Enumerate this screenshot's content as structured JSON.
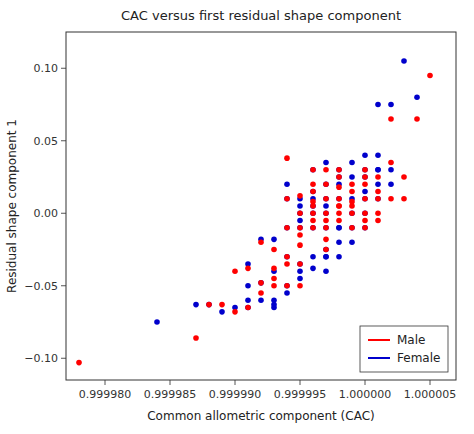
{
  "chart_data": {
    "type": "scatter",
    "title": "CAC versus first residual shape component",
    "x_label": "Common allometric component (CAC)",
    "y_label": "Residual shape component 1",
    "xlim": [
      0.999977,
      1.000007
    ],
    "ylim": [
      -0.115,
      0.125
    ],
    "xticks": [
      {
        "value": 0.99998,
        "label": "0.999980"
      },
      {
        "value": 0.999985,
        "label": "0.999985"
      },
      {
        "value": 0.99999,
        "label": "0.999990"
      },
      {
        "value": 0.999995,
        "label": "0.999995"
      },
      {
        "value": 1.0,
        "label": "1.000000"
      },
      {
        "value": 1.000005,
        "label": "1.000005"
      }
    ],
    "yticks": [
      {
        "value": -0.1,
        "label": "−0.10"
      },
      {
        "value": -0.05,
        "label": "−0.05"
      },
      {
        "value": 0.0,
        "label": "0.00"
      },
      {
        "value": 0.05,
        "label": "0.05"
      },
      {
        "value": 0.1,
        "label": "0.10"
      }
    ],
    "legend": "lower right",
    "series": [
      {
        "name": "Male",
        "color": "#FF0000",
        "x": [
          0.999978,
          0.999987,
          0.999988,
          0.999989,
          0.99999,
          0.99999,
          0.999991,
          0.999991,
          0.999992,
          0.999992,
          0.999992,
          0.999993,
          0.999993,
          0.999993,
          0.999993,
          0.999994,
          0.999994,
          0.999994,
          0.999994,
          0.999994,
          0.999994,
          0.999995,
          0.999995,
          0.999995,
          0.999995,
          0.999995,
          0.999995,
          0.999995,
          0.999996,
          0.999996,
          0.999996,
          0.999996,
          0.999996,
          0.999996,
          0.999996,
          0.999996,
          0.999997,
          0.999997,
          0.999997,
          0.999997,
          0.999997,
          0.999997,
          0.999997,
          0.999997,
          0.999998,
          0.999998,
          0.999998,
          0.999998,
          0.999998,
          0.999998,
          0.999998,
          0.999998,
          0.999999,
          0.999999,
          0.999999,
          0.999999,
          0.999999,
          0.999999,
          1.0,
          1.0,
          1.0,
          1.0,
          1.0,
          1.0,
          1.0,
          1.000001,
          1.000001,
          1.000001,
          1.000001,
          1.000001,
          1.000002,
          1.000002,
          1.000002,
          1.000003,
          1.000003,
          1.000004,
          1.000005
        ],
        "values": [
          -0.103,
          -0.086,
          -0.063,
          -0.063,
          -0.068,
          -0.04,
          -0.065,
          -0.038,
          -0.048,
          -0.02,
          -0.055,
          -0.05,
          -0.045,
          -0.038,
          -0.025,
          -0.05,
          -0.03,
          -0.01,
          0.01,
          0.038,
          -0.035,
          -0.05,
          -0.035,
          -0.022,
          -0.015,
          0.0,
          0.012,
          -0.01,
          -0.01,
          -0.005,
          0.005,
          0.008,
          0.015,
          0.02,
          0.03,
          0.0,
          -0.025,
          -0.018,
          -0.01,
          -0.005,
          0.0,
          0.01,
          0.02,
          0.03,
          -0.005,
          0.0,
          0.005,
          0.01,
          0.018,
          0.025,
          0.03,
          0.005,
          0.0,
          -0.01,
          0.005,
          0.008,
          0.015,
          0.02,
          -0.01,
          -0.005,
          0.0,
          0.01,
          0.02,
          0.025,
          0.03,
          -0.005,
          0.0,
          0.01,
          0.015,
          0.025,
          0.01,
          0.035,
          0.065,
          0.01,
          0.025,
          0.065,
          0.095
        ]
      },
      {
        "name": "Female",
        "color": "#0000CC",
        "x": [
          0.999984,
          0.999987,
          0.999988,
          0.999989,
          0.99999,
          0.999991,
          0.999991,
          0.999991,
          0.999991,
          0.999992,
          0.999992,
          0.999992,
          0.999993,
          0.999993,
          0.999993,
          0.999993,
          0.999993,
          0.999994,
          0.999994,
          0.999994,
          0.999994,
          0.999994,
          0.999994,
          0.999995,
          0.999995,
          0.999995,
          0.999995,
          0.999995,
          0.999995,
          0.999995,
          0.999995,
          0.999996,
          0.999996,
          0.999996,
          0.999996,
          0.999996,
          0.999996,
          0.999996,
          0.999996,
          0.999997,
          0.999997,
          0.999997,
          0.999997,
          0.999997,
          0.999997,
          0.999997,
          0.999997,
          0.999997,
          0.999997,
          0.999998,
          0.999998,
          0.999998,
          0.999998,
          0.999998,
          0.999998,
          0.999998,
          0.999998,
          0.999999,
          0.999999,
          0.999999,
          0.999999,
          0.999999,
          0.999999,
          1.0,
          1.0,
          1.0,
          1.0,
          1.0,
          1.0,
          1.0,
          1.000001,
          1.000001,
          1.000001,
          1.000001,
          1.000001,
          1.000001,
          1.000002,
          1.000002,
          1.000002,
          1.000003,
          1.000004
        ],
        "values": [
          -0.075,
          -0.063,
          -0.063,
          -0.068,
          -0.065,
          -0.065,
          -0.06,
          -0.05,
          -0.035,
          -0.06,
          -0.048,
          -0.018,
          -0.065,
          -0.063,
          -0.06,
          -0.04,
          -0.018,
          -0.055,
          -0.05,
          -0.03,
          -0.01,
          0.01,
          0.02,
          -0.045,
          -0.04,
          -0.035,
          -0.01,
          -0.005,
          0.0,
          0.005,
          0.01,
          -0.038,
          -0.03,
          -0.01,
          0.005,
          0.01,
          0.015,
          0.03,
          0.0,
          -0.03,
          -0.025,
          -0.01,
          0.0,
          0.005,
          0.01,
          0.02,
          0.035,
          -0.03,
          -0.04,
          -0.03,
          -0.02,
          -0.01,
          0.01,
          0.02,
          0.025,
          0.03,
          -0.01,
          -0.02,
          -0.01,
          0.0,
          0.01,
          0.025,
          0.035,
          -0.01,
          0.0,
          0.01,
          0.015,
          0.025,
          0.03,
          0.04,
          0.01,
          0.02,
          0.03,
          0.04,
          0.075,
          0.03,
          0.02,
          0.03,
          0.075,
          0.105,
          0.08
        ]
      }
    ]
  }
}
